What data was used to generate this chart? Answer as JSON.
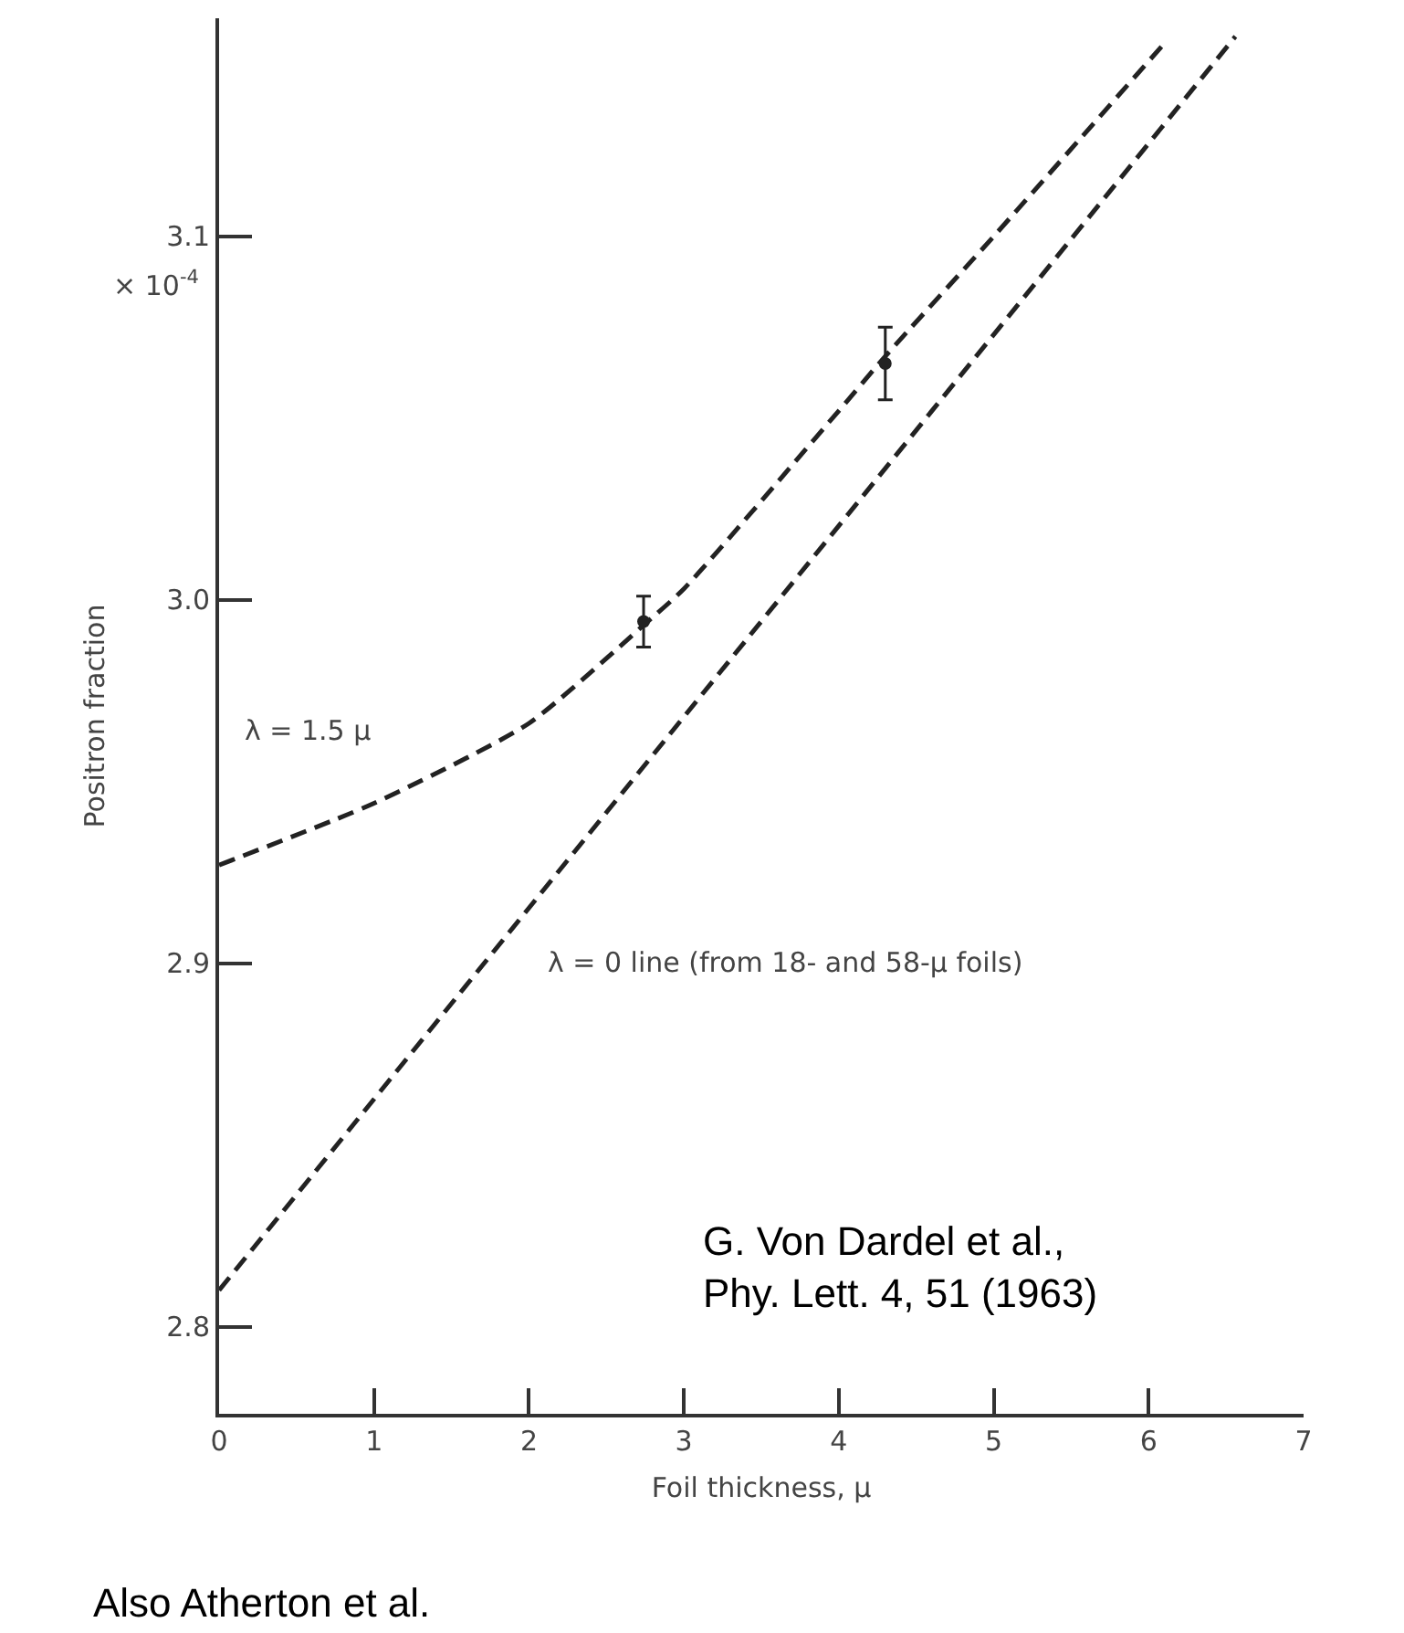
{
  "chart_data": {
    "type": "line",
    "xlabel": "Foil thickness, μ",
    "ylabel": "Positron fraction",
    "xlim": [
      0,
      7
    ],
    "xticks": [
      0,
      1,
      2,
      3,
      4,
      5,
      6,
      7
    ],
    "ylim": [
      2.776,
      3.16
    ],
    "yticks": [
      {
        "value": 2.8,
        "label": "2.8"
      },
      {
        "value": 2.9,
        "label": "2.9"
      },
      {
        "value": 3.0,
        "label": "3.0"
      },
      {
        "value": 3.1,
        "label": "3.1"
      }
    ],
    "grid": false,
    "series": [
      {
        "color": "#222222",
        "line_style": "dashed",
        "marker": "none",
        "x": [
          0,
          1,
          2,
          2.74,
          3,
          4,
          4.3,
          5,
          6.12
        ],
        "values": [
          2.927,
          2.944,
          2.966,
          2.993,
          3.003,
          3.052,
          3.067,
          3.1,
          3.154
        ]
      },
      {
        "color": "#222222",
        "line_style": "dashed",
        "marker": "none",
        "x": [
          0,
          6.56
        ],
        "values": [
          2.81,
          3.155
        ]
      },
      {
        "type": "scatter",
        "color": "#222222",
        "marker": "circle",
        "x": [
          2.74,
          4.3
        ],
        "values": [
          2.994,
          3.065
        ],
        "errors": [
          0.007,
          0.01
        ]
      }
    ],
    "annotations": [
      "λ = 1.5 μ",
      "λ = 0 line (from 18- and 58-μ foils)",
      "× 10$^{-4}$",
      "G. Von Dardel et al.,\nPhy. Lett. 4, 51 (1963)",
      "Also Atherton et al."
    ]
  }
}
